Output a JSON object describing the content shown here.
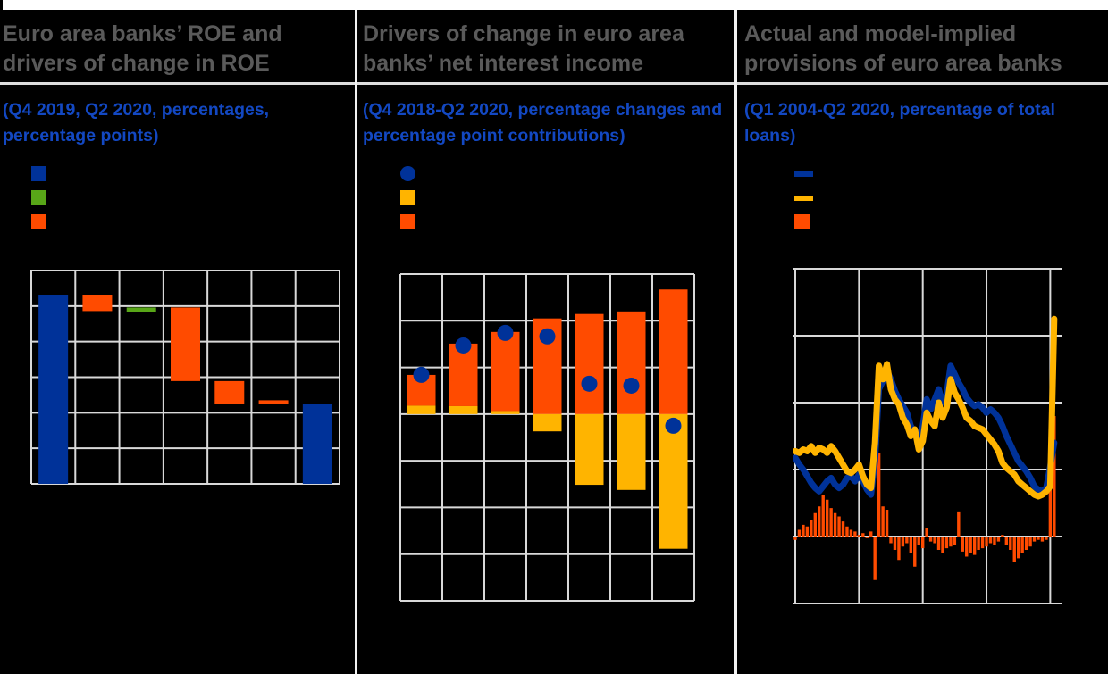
{
  "background": "#000000",
  "colors": {
    "title_gray": "#5a5a5a",
    "subtitle_blue": "#1348c2",
    "grid": "#d9d9d9",
    "panel_divider": "#f2f2f2",
    "title_underline": "#dedede",
    "blue": "#003299",
    "green": "#58A618",
    "orange": "#FF4B00",
    "yellow": "#FFB400"
  },
  "chart_data": [
    {
      "type": "bar",
      "subtype": "waterfall",
      "title": "Euro area banks’ ROE and drivers of change in ROE",
      "subtitle": "(Q4 2019, Q2 2020, percentages, percentage points)",
      "ylim": [
        0,
        6
      ],
      "grid_step_y": 1,
      "categories_count": 7,
      "grid": "on",
      "legend": [
        {
          "marker": "square",
          "color": "#003299"
        },
        {
          "marker": "square",
          "color": "#58A618"
        },
        {
          "marker": "square",
          "color": "#FF4B00"
        }
      ],
      "bars": [
        {
          "category": 1,
          "color": "#003299",
          "from": 0,
          "to": 5.3
        },
        {
          "category": 2,
          "color": "#FF4B00",
          "from": 4.86,
          "to": 5.3
        },
        {
          "category": 3,
          "color": "#58A618",
          "from": 4.84,
          "to": 4.96
        },
        {
          "category": 4,
          "color": "#FF4B00",
          "from": 2.89,
          "to": 4.96
        },
        {
          "category": 5,
          "color": "#FF4B00",
          "from": 2.24,
          "to": 2.89
        },
        {
          "category": 6,
          "color": "#FF4B00",
          "from": 2.24,
          "to": 2.35
        },
        {
          "category": 7,
          "color": "#003299",
          "from": 0,
          "to": 2.25
        }
      ]
    },
    {
      "type": "bar",
      "subtype": "stacked-with-dots",
      "title": "Drivers of change in euro area banks’ net interest income",
      "subtitle": "(Q4 2018-Q2 2020, percentage changes and percentage point contributions)",
      "ylim": [
        -8,
        6
      ],
      "grid_step_y": 2,
      "categories_count": 7,
      "grid": "on",
      "legend": [
        {
          "marker": "circle",
          "color": "#003299"
        },
        {
          "marker": "square",
          "color": "#FFB400"
        },
        {
          "marker": "square",
          "color": "#FF4B00"
        }
      ],
      "groups": [
        {
          "orange": [
            0.36,
            1.68
          ],
          "yellow": [
            0,
            0.36
          ],
          "dot": 1.68
        },
        {
          "orange": [
            0.34,
            3.02
          ],
          "yellow": [
            0,
            0.34
          ],
          "dot": 2.94
        },
        {
          "orange": [
            0.13,
            3.52
          ],
          "yellow": [
            0,
            0.13
          ],
          "dot": 3.48
        },
        {
          "orange": [
            0,
            4.1
          ],
          "yellow": [
            -0.74,
            0
          ],
          "dot": 3.33
        },
        {
          "orange": [
            0,
            4.29
          ],
          "yellow": [
            -3.03,
            0
          ],
          "dot": 1.3
        },
        {
          "orange": [
            0,
            4.4
          ],
          "yellow": [
            -3.25,
            0
          ],
          "dot": 1.22
        },
        {
          "orange": [
            0,
            5.34
          ],
          "yellow": [
            -5.77,
            0
          ],
          "dot": -0.5
        }
      ]
    },
    {
      "type": "line",
      "title": "Actual and model-implied provisions of euro area banks",
      "subtitle": "(Q1 2004-Q2 2020, percentage of total loans)",
      "x_start": "Q1 2004",
      "x_end": "Q2 2020",
      "quarters": 66,
      "ylim": [
        -0.4,
        1.6
      ],
      "grid_step_y": 0.4,
      "x_gridline_every_quarters": 16,
      "grid": "on",
      "legend": [
        {
          "marker": "line",
          "color": "#003299"
        },
        {
          "marker": "line",
          "color": "#FFB400"
        },
        {
          "marker": "square",
          "color": "#FF4B00"
        }
      ],
      "series": [
        {
          "name": "blue-line",
          "style": "line",
          "color": "#003299",
          "values": [
            0.47,
            0.43,
            0.4,
            0.36,
            0.32,
            0.29,
            0.27,
            0.3,
            0.33,
            0.35,
            0.31,
            0.29,
            0.31,
            0.35,
            0.36,
            0.33,
            0.37,
            0.33,
            0.28,
            0.25,
            0.45,
            0.88,
            0.93,
            0.99,
            0.94,
            0.87,
            0.82,
            0.78,
            0.74,
            0.66,
            0.62,
            0.58,
            0.66,
            0.82,
            0.76,
            0.82,
            0.88,
            0.8,
            0.85,
            1.02,
            0.97,
            0.92,
            0.88,
            0.83,
            0.8,
            0.78,
            0.79,
            0.77,
            0.74,
            0.76,
            0.74,
            0.71,
            0.66,
            0.6,
            0.55,
            0.5,
            0.45,
            0.42,
            0.39,
            0.35,
            0.3,
            0.28,
            0.27,
            0.29,
            0.42,
            0.56
          ]
        },
        {
          "name": "yellow-line",
          "style": "line",
          "color": "#FFB400",
          "values": [
            0.51,
            0.5,
            0.52,
            0.51,
            0.54,
            0.5,
            0.53,
            0.52,
            0.5,
            0.54,
            0.51,
            0.47,
            0.43,
            0.39,
            0.38,
            0.4,
            0.43,
            0.36,
            0.31,
            0.29,
            0.56,
            1.02,
            0.94,
            1.03,
            0.88,
            0.82,
            0.79,
            0.71,
            0.67,
            0.6,
            0.64,
            0.52,
            0.57,
            0.74,
            0.69,
            0.66,
            0.8,
            0.71,
            0.77,
            0.94,
            0.86,
            0.82,
            0.77,
            0.71,
            0.69,
            0.66,
            0.65,
            0.64,
            0.61,
            0.58,
            0.55,
            0.51,
            0.44,
            0.41,
            0.39,
            0.37,
            0.33,
            0.31,
            0.29,
            0.27,
            0.25,
            0.24,
            0.25,
            0.27,
            0.3,
            1.3
          ]
        },
        {
          "name": "orange-bars",
          "style": "bar",
          "color": "#FF4B00",
          "values": [
            -0.02,
            0.04,
            0.07,
            0.06,
            0.1,
            0.14,
            0.18,
            0.25,
            0.22,
            0.17,
            0.14,
            0.12,
            0.09,
            0.06,
            0.04,
            0.03,
            0.01,
            0.02,
            -0.01,
            0.03,
            -0.26,
            0.5,
            0.18,
            0.16,
            -0.04,
            -0.08,
            -0.14,
            -0.06,
            -0.04,
            -0.1,
            -0.18,
            -0.05,
            -0.07,
            0.05,
            -0.03,
            -0.04,
            -0.08,
            -0.1,
            -0.07,
            -0.06,
            -0.05,
            0.15,
            -0.09,
            -0.12,
            -0.1,
            -0.11,
            -0.08,
            -0.07,
            -0.06,
            -0.04,
            -0.05,
            -0.03,
            0.01,
            -0.05,
            -0.08,
            -0.15,
            -0.13,
            -0.1,
            -0.08,
            -0.06,
            -0.03,
            -0.02,
            -0.03,
            -0.02,
            0.43,
            0.72
          ]
        }
      ]
    }
  ]
}
